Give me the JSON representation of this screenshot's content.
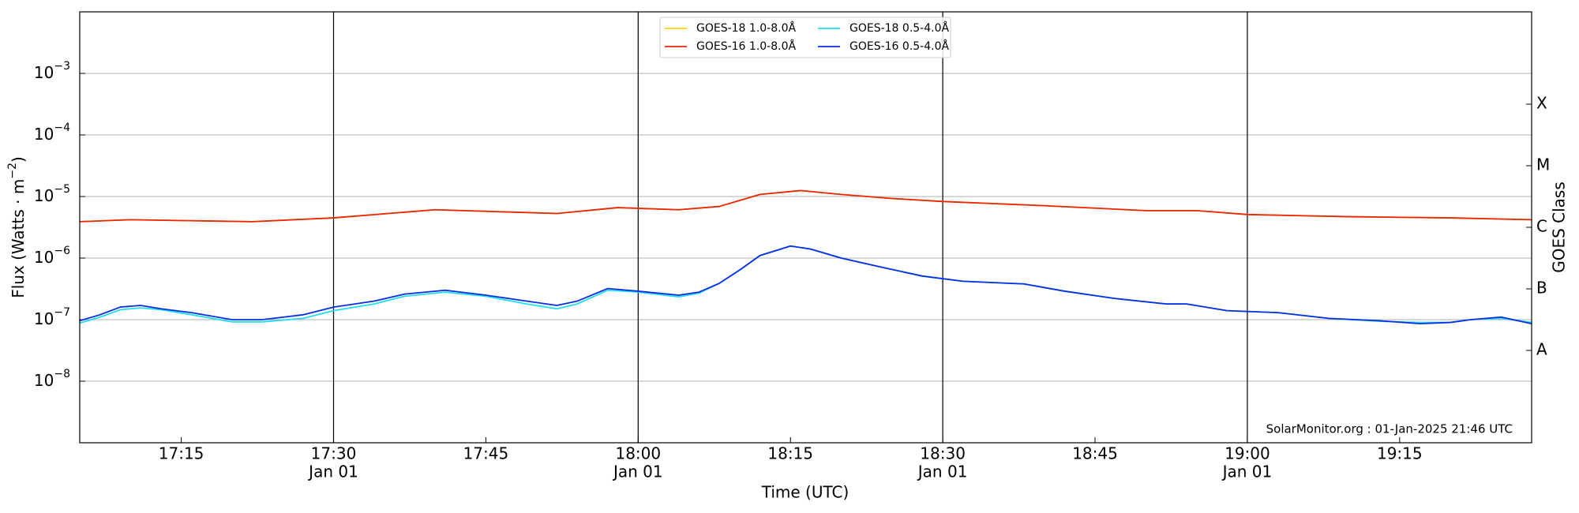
{
  "chart_data": {
    "type": "line",
    "xlabel": "Time (UTC)",
    "ylabel": {
      "text": "Flux (Watts · m",
      "exponent": "−2",
      "suffix": ")"
    },
    "y2label": "GOES Class",
    "watermark": "SolarMonitor.org : 01-Jan-2025 21:46 UTC",
    "log_y": true,
    "grid": true,
    "legend": "top-center",
    "xlim": [
      "17:05",
      "19:28"
    ],
    "xticks": [
      {
        "value": "17:15",
        "label": "17:15"
      },
      {
        "value": "17:30",
        "label": "17:30",
        "sublabel": "Jan 01"
      },
      {
        "value": "17:45",
        "label": "17:45"
      },
      {
        "value": "18:00",
        "label": "18:00",
        "sublabel": "Jan 01"
      },
      {
        "value": "18:15",
        "label": "18:15"
      },
      {
        "value": "18:30",
        "label": "18:30",
        "sublabel": "Jan 01"
      },
      {
        "value": "18:45",
        "label": "18:45"
      },
      {
        "value": "19:00",
        "label": "19:00",
        "sublabel": "Jan 01"
      },
      {
        "value": "19:15",
        "label": "19:15"
      }
    ],
    "ylim": [
      1e-09,
      0.01
    ],
    "yticks": [
      {
        "value": 0.001,
        "label": "10",
        "exponent": "−3"
      },
      {
        "value": 0.0001,
        "label": "10",
        "exponent": "−4"
      },
      {
        "value": 1e-05,
        "label": "10",
        "exponent": "−5"
      },
      {
        "value": 1e-06,
        "label": "10",
        "exponent": "−6"
      },
      {
        "value": 1e-07,
        "label": "10",
        "exponent": "−7"
      },
      {
        "value": 1e-08,
        "label": "10",
        "exponent": "−8"
      }
    ],
    "class_ticks": [
      {
        "value": 3.162e-08,
        "label": "A"
      },
      {
        "value": 3.162e-07,
        "label": "B"
      },
      {
        "value": 3.162e-06,
        "label": "C"
      },
      {
        "value": 3.162e-05,
        "label": "M"
      },
      {
        "value": 0.0003162,
        "label": "X"
      }
    ],
    "series": [
      {
        "name": "GOES-18 1.0-8.0Å",
        "color": "#ffd700",
        "x": [
          "17:05",
          "17:10",
          "17:22",
          "17:30",
          "17:40",
          "17:52",
          "17:58",
          "18:04",
          "18:08",
          "18:12",
          "18:16",
          "18:20",
          "18:25",
          "18:30",
          "18:40",
          "18:50",
          "18:55",
          "19:00",
          "19:10",
          "19:20",
          "19:28"
        ],
        "values": [
          3.9e-06,
          4.2e-06,
          3.9e-06,
          4.5e-06,
          6.1e-06,
          5.3e-06,
          6.6e-06,
          6.1e-06,
          6.9e-06,
          1.08e-05,
          1.25e-05,
          1.08e-05,
          9.3e-06,
          8.3e-06,
          7.1e-06,
          5.9e-06,
          5.9e-06,
          5.1e-06,
          4.7e-06,
          4.5e-06,
          4.2e-06
        ]
      },
      {
        "name": "GOES-16 1.0-8.0Å",
        "color": "#e8260c",
        "x": [
          "17:05",
          "17:10",
          "17:22",
          "17:30",
          "17:40",
          "17:52",
          "17:58",
          "18:04",
          "18:08",
          "18:12",
          "18:16",
          "18:20",
          "18:25",
          "18:30",
          "18:40",
          "18:50",
          "18:55",
          "19:00",
          "19:10",
          "19:20",
          "19:28"
        ],
        "values": [
          3.9e-06,
          4.2e-06,
          3.9e-06,
          4.5e-06,
          6.1e-06,
          5.3e-06,
          6.6e-06,
          6.1e-06,
          6.9e-06,
          1.08e-05,
          1.25e-05,
          1.08e-05,
          9.3e-06,
          8.3e-06,
          7.1e-06,
          5.9e-06,
          5.9e-06,
          5.1e-06,
          4.7e-06,
          4.5e-06,
          4.2e-06
        ]
      },
      {
        "name": "GOES-18 0.5-4.0Å",
        "color": "#22dcef",
        "x": [
          "17:05",
          "17:07",
          "17:09",
          "17:11",
          "17:13",
          "17:16",
          "17:20",
          "17:23",
          "17:27",
          "17:30",
          "17:34",
          "17:37",
          "17:41",
          "17:45",
          "17:49",
          "17:52",
          "17:54",
          "17:57",
          "18:00",
          "18:04",
          "18:06",
          "18:08",
          "18:10",
          "18:12",
          "18:15",
          "18:17",
          "18:20",
          "18:24",
          "18:28",
          "18:32",
          "18:38",
          "18:42",
          "18:47",
          "18:52",
          "18:54",
          "18:58",
          "19:03",
          "19:08",
          "19:13",
          "19:17",
          "19:20",
          "19:22",
          "19:25",
          "19:28"
        ],
        "values": [
          8.8e-08,
          1.1e-07,
          1.45e-07,
          1.55e-07,
          1.45e-07,
          1.2e-07,
          9.2e-08,
          9.2e-08,
          1.05e-07,
          1.4e-07,
          1.8e-07,
          2.4e-07,
          2.8e-07,
          2.4e-07,
          1.8e-07,
          1.5e-07,
          1.8e-07,
          3e-07,
          2.8e-07,
          2.35e-07,
          2.7e-07,
          3.9e-07,
          6.4e-07,
          1.1e-06,
          1.57e-06,
          1.4e-06,
          1e-06,
          7.1e-07,
          5.1e-07,
          4.2e-07,
          3.8e-07,
          2.9e-07,
          2.2e-07,
          1.8e-07,
          1.8e-07,
          1.4e-07,
          1.3e-07,
          1.05e-07,
          9.4e-08,
          9e-08,
          9e-08,
          1e-07,
          1.05e-07,
          9e-08
        ]
      },
      {
        "name": "GOES-16 0.5-4.0Å",
        "color": "#0a2ee0",
        "x": [
          "17:05",
          "17:07",
          "17:09",
          "17:11",
          "17:13",
          "17:16",
          "17:20",
          "17:23",
          "17:27",
          "17:30",
          "17:34",
          "17:37",
          "17:41",
          "17:45",
          "17:49",
          "17:52",
          "17:54",
          "17:57",
          "18:00",
          "18:04",
          "18:06",
          "18:08",
          "18:10",
          "18:12",
          "18:15",
          "18:17",
          "18:20",
          "18:24",
          "18:28",
          "18:32",
          "18:38",
          "18:42",
          "18:47",
          "18:52",
          "18:54",
          "18:58",
          "19:03",
          "19:08",
          "19:13",
          "19:17",
          "19:20",
          "19:22",
          "19:25",
          "19:28"
        ],
        "values": [
          9.6e-08,
          1.2e-07,
          1.6e-07,
          1.7e-07,
          1.5e-07,
          1.3e-07,
          1e-07,
          1e-07,
          1.2e-07,
          1.6e-07,
          2e-07,
          2.6e-07,
          3e-07,
          2.5e-07,
          2e-07,
          1.7e-07,
          2e-07,
          3.2e-07,
          2.9e-07,
          2.5e-07,
          2.8e-07,
          3.9e-07,
          6.4e-07,
          1.1e-06,
          1.57e-06,
          1.4e-06,
          1e-06,
          7.1e-07,
          5.1e-07,
          4.2e-07,
          3.8e-07,
          2.9e-07,
          2.2e-07,
          1.8e-07,
          1.8e-07,
          1.4e-07,
          1.3e-07,
          1.05e-07,
          9.6e-08,
          8.6e-08,
          9e-08,
          1e-07,
          1.1e-07,
          8.6e-08
        ]
      }
    ]
  }
}
